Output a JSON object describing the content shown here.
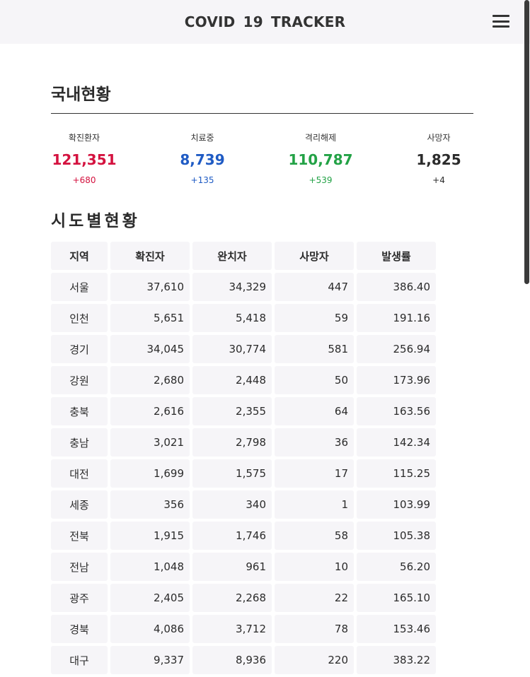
{
  "header": {
    "title": "COVID 19  TRACKER"
  },
  "domestic": {
    "title": "국내현황",
    "stats": [
      {
        "label": "확진환자",
        "value": "121,351",
        "delta": "+680",
        "color": "#d4123f"
      },
      {
        "label": "치료중",
        "value": "8,739",
        "delta": "+135",
        "color": "#1f5bc4"
      },
      {
        "label": "격리해제",
        "value": "110,787",
        "delta": "+539",
        "color": "#23a246"
      },
      {
        "label": "사망자",
        "value": "1,825",
        "delta": "+4",
        "color": "#2b2b2b"
      }
    ]
  },
  "regional": {
    "title": "시도별현황",
    "columns": [
      "지역",
      "확진자",
      "완치자",
      "사망자",
      "발생률"
    ],
    "rows": [
      [
        "서울",
        "37,610",
        "34,329",
        "447",
        "386.40"
      ],
      [
        "인천",
        "5,651",
        "5,418",
        "59",
        "191.16"
      ],
      [
        "경기",
        "34,045",
        "30,774",
        "581",
        "256.94"
      ],
      [
        "강원",
        "2,680",
        "2,448",
        "50",
        "173.96"
      ],
      [
        "충북",
        "2,616",
        "2,355",
        "64",
        "163.56"
      ],
      [
        "충남",
        "3,021",
        "2,798",
        "36",
        "142.34"
      ],
      [
        "대전",
        "1,699",
        "1,575",
        "17",
        "115.25"
      ],
      [
        "세종",
        "356",
        "340",
        "1",
        "103.99"
      ],
      [
        "전북",
        "1,915",
        "1,746",
        "58",
        "105.38"
      ],
      [
        "전남",
        "1,048",
        "961",
        "10",
        "56.20"
      ],
      [
        "광주",
        "2,405",
        "2,268",
        "22",
        "165.10"
      ],
      [
        "경북",
        "4,086",
        "3,712",
        "78",
        "153.46"
      ],
      [
        "대구",
        "9,337",
        "8,936",
        "220",
        "383.22"
      ]
    ]
  }
}
